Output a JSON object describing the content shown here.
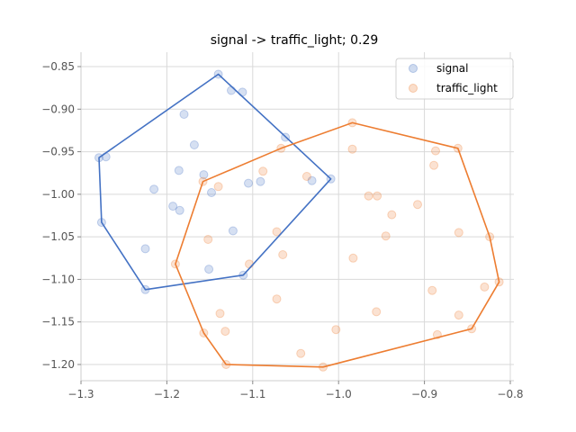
{
  "chart_data": {
    "type": "scatter",
    "title": "signal -> traffic_light; 0.29",
    "xlabel": "",
    "ylabel": "",
    "xlim": [
      -1.3,
      -0.8
    ],
    "ylim": [
      -1.22,
      -0.835
    ],
    "xticks": [
      -1.3,
      -1.2,
      -1.1,
      -1.0,
      -0.9,
      -0.8
    ],
    "yticks": [
      -1.2,
      -1.15,
      -1.1,
      -1.05,
      -1.0,
      -0.95,
      -0.9,
      -0.85
    ],
    "xtick_labels": [
      "−1.3",
      "−1.2",
      "−1.1",
      "−1.0",
      "−0.9",
      "−0.8"
    ],
    "ytick_labels": [
      "−1.20",
      "−1.15",
      "−1.10",
      "−1.05",
      "−1.00",
      "−0.95",
      "−0.90",
      "−0.85"
    ],
    "grid": true,
    "legend_position": "top-right",
    "series": [
      {
        "name": "signal",
        "color": "#4472c4",
        "points": [
          [
            -1.14,
            -0.859
          ],
          [
            -1.125,
            -0.878
          ],
          [
            -1.112,
            -0.88
          ],
          [
            -1.18,
            -0.906
          ],
          [
            -1.168,
            -0.942
          ],
          [
            -1.062,
            -0.933
          ],
          [
            -1.279,
            -0.957
          ],
          [
            -1.271,
            -0.956
          ],
          [
            -1.186,
            -0.972
          ],
          [
            -1.157,
            -0.977
          ],
          [
            -1.105,
            -0.987
          ],
          [
            -1.091,
            -0.985
          ],
          [
            -1.031,
            -0.984
          ],
          [
            -1.009,
            -0.982
          ],
          [
            -1.215,
            -0.994
          ],
          [
            -1.148,
            -0.998
          ],
          [
            -1.193,
            -1.014
          ],
          [
            -1.185,
            -1.019
          ],
          [
            -1.276,
            -1.033
          ],
          [
            -1.123,
            -1.043
          ],
          [
            -1.225,
            -1.064
          ],
          [
            -1.151,
            -1.088
          ],
          [
            -1.111,
            -1.095
          ],
          [
            -1.225,
            -1.112
          ]
        ],
        "hull": [
          [
            -1.14,
            -0.859
          ],
          [
            -1.009,
            -0.982
          ],
          [
            -1.111,
            -1.095
          ],
          [
            -1.225,
            -1.112
          ],
          [
            -1.276,
            -1.033
          ],
          [
            -1.279,
            -0.957
          ]
        ]
      },
      {
        "name": "traffic_light",
        "color": "#ed7d31",
        "points": [
          [
            -0.984,
            -0.916
          ],
          [
            -0.984,
            -0.947
          ],
          [
            -0.887,
            -0.949
          ],
          [
            -0.861,
            -0.946
          ],
          [
            -0.889,
            -0.966
          ],
          [
            -1.067,
            -0.946
          ],
          [
            -1.088,
            -0.973
          ],
          [
            -1.037,
            -0.979
          ],
          [
            -1.158,
            -0.985
          ],
          [
            -1.14,
            -0.991
          ],
          [
            -0.965,
            -1.002
          ],
          [
            -0.955,
            -1.002
          ],
          [
            -0.908,
            -1.012
          ],
          [
            -0.938,
            -1.024
          ],
          [
            -1.072,
            -1.044
          ],
          [
            -1.152,
            -1.053
          ],
          [
            -0.945,
            -1.049
          ],
          [
            -0.86,
            -1.045
          ],
          [
            -0.824,
            -1.05
          ],
          [
            -1.065,
            -1.071
          ],
          [
            -0.983,
            -1.075
          ],
          [
            -1.19,
            -1.082
          ],
          [
            -1.104,
            -1.082
          ],
          [
            -0.891,
            -1.113
          ],
          [
            -0.83,
            -1.109
          ],
          [
            -0.813,
            -1.103
          ],
          [
            -1.072,
            -1.123
          ],
          [
            -1.138,
            -1.14
          ],
          [
            -0.956,
            -1.138
          ],
          [
            -0.86,
            -1.142
          ],
          [
            -1.132,
            -1.161
          ],
          [
            -1.003,
            -1.159
          ],
          [
            -0.845,
            -1.158
          ],
          [
            -0.885,
            -1.165
          ],
          [
            -1.157,
            -1.163
          ],
          [
            -1.044,
            -1.187
          ],
          [
            -1.131,
            -1.2
          ],
          [
            -1.018,
            -1.203
          ]
        ],
        "hull": [
          [
            -0.984,
            -0.916
          ],
          [
            -0.861,
            -0.946
          ],
          [
            -0.824,
            -1.05
          ],
          [
            -0.813,
            -1.103
          ],
          [
            -0.845,
            -1.158
          ],
          [
            -1.018,
            -1.203
          ],
          [
            -1.131,
            -1.2
          ],
          [
            -1.157,
            -1.163
          ],
          [
            -1.19,
            -1.082
          ],
          [
            -1.158,
            -0.985
          ],
          [
            -1.067,
            -0.946
          ]
        ]
      }
    ]
  }
}
